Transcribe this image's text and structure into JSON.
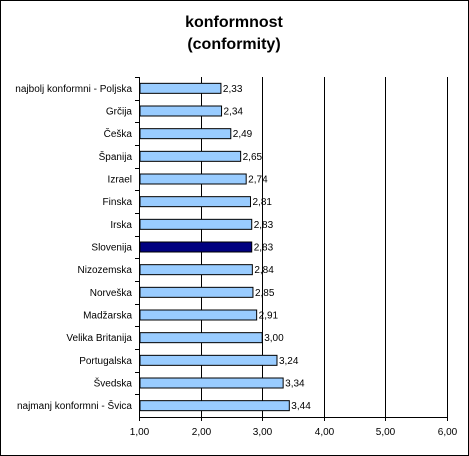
{
  "chart_data": {
    "type": "bar",
    "orientation": "horizontal",
    "title": "konformnost",
    "subtitle": "(conformity)",
    "categories": [
      "najbolj konformni - Poljska",
      "Grčija",
      "Češka",
      "Španija",
      "Izrael",
      "Finska",
      "Irska",
      "Slovenija",
      "Nizozemska",
      "Norveška",
      "Madžarska",
      "Velika Britanija",
      "Portugalska",
      "Švedska",
      "najmanj konformni - Švica"
    ],
    "values": [
      2.33,
      2.34,
      2.49,
      2.65,
      2.74,
      2.81,
      2.83,
      2.83,
      2.84,
      2.85,
      2.91,
      3.0,
      3.24,
      3.34,
      3.44
    ],
    "value_labels": [
      "2,33",
      "2,34",
      "2,49",
      "2,65",
      "2,74",
      "2,81",
      "2,83",
      "2,83",
      "2,84",
      "2,85",
      "2,91",
      "3,00",
      "3,24",
      "3,34",
      "3,44"
    ],
    "highlight": "Slovenija",
    "xlim": [
      1,
      6
    ],
    "xticks": [
      1,
      2,
      3,
      4,
      5,
      6
    ],
    "xtick_labels": [
      "1,00",
      "2,00",
      "3,00",
      "4,00",
      "5,00",
      "6,00"
    ],
    "xlabel": "",
    "ylabel": "",
    "grid": true,
    "colors": {
      "bar": "#99ccff",
      "highlight_bar": "#000080",
      "bar_border": "#000000",
      "gridline": "#000000"
    }
  }
}
